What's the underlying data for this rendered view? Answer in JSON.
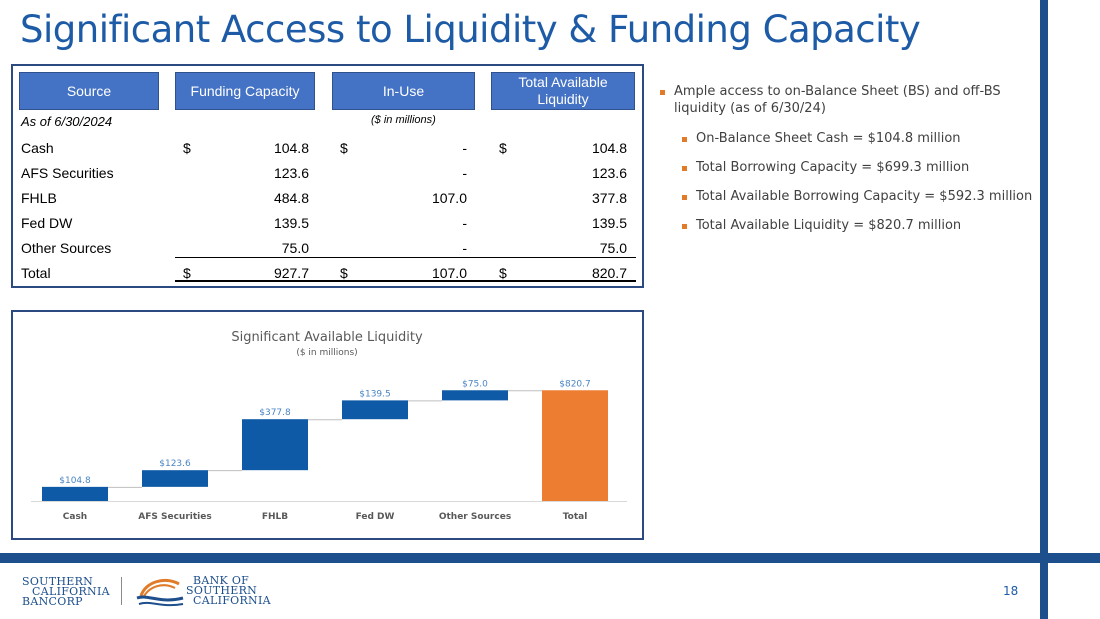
{
  "title": "Significant Access to Liquidity & Funding Capacity",
  "table": {
    "headers": [
      "Source",
      "Funding Capacity",
      "In-Use",
      "Total Available Liquidity"
    ],
    "as_of": "As of 6/30/2024",
    "units": "($ in millions)",
    "rows": [
      {
        "label": "Cash",
        "funding_dollar": "$",
        "funding": "104.8",
        "inuse_dollar": "$",
        "inuse": "-",
        "avail_dollar": "$",
        "avail": "104.8"
      },
      {
        "label": "AFS Securities",
        "funding_dollar": "",
        "funding": "123.6",
        "inuse_dollar": "",
        "inuse": "-",
        "avail_dollar": "",
        "avail": "123.6"
      },
      {
        "label": "FHLB",
        "funding_dollar": "",
        "funding": "484.8",
        "inuse_dollar": "",
        "inuse": "107.0",
        "avail_dollar": "",
        "avail": "377.8"
      },
      {
        "label": "Fed DW",
        "funding_dollar": "",
        "funding": "139.5",
        "inuse_dollar": "",
        "inuse": "-",
        "avail_dollar": "",
        "avail": "139.5"
      },
      {
        "label": "Other Sources",
        "funding_dollar": "",
        "funding": "75.0",
        "inuse_dollar": "",
        "inuse": "-",
        "avail_dollar": "",
        "avail": "75.0"
      },
      {
        "label": "Total",
        "funding_dollar": "$",
        "funding": "927.7",
        "inuse_dollar": "$",
        "inuse": "107.0",
        "avail_dollar": "$",
        "avail": "820.7"
      }
    ]
  },
  "bullets": [
    {
      "level": 1,
      "lines": [
        "Ample access to on-Balance Sheet (BS) and off-BS",
        "liquidity (as of 6/30/24)"
      ]
    },
    {
      "level": 2,
      "lines": [
        "On-Balance Sheet Cash = $104.8 million"
      ]
    },
    {
      "level": 2,
      "lines": [
        "Total Borrowing Capacity = $699.3 million"
      ]
    },
    {
      "level": 2,
      "lines": [
        "Total Available Borrowing Capacity = $592.3 million"
      ]
    },
    {
      "level": 2,
      "lines": [
        "Total Available Liquidity = $820.7 million"
      ]
    }
  ],
  "chart_data": {
    "type": "bar",
    "subtype": "waterfall",
    "title": "Significant Available Liquidity",
    "subtitle": "($ in millions)",
    "categories": [
      "Cash",
      "AFS Securities",
      "FHLB",
      "Fed DW",
      "Other Sources",
      "Total"
    ],
    "values": [
      104.8,
      123.6,
      377.8,
      139.5,
      75.0,
      820.7
    ],
    "data_labels": [
      "$104.8",
      "$123.6",
      "$377.8",
      "$139.5",
      "$75.0",
      "$820.7"
    ],
    "ylim": [
      0,
      830
    ],
    "grid": false,
    "colors": {
      "increase": "#0f5aa6",
      "total": "#ed7d31",
      "label": "#4a86c5"
    }
  },
  "footer": {
    "left_logo_lines": [
      "SOUTHERN",
      "CALIFORNIA",
      "BANCORP"
    ],
    "right_logo_lines": [
      "BANK OF",
      "SOUTHERN",
      "CALIFORNIA"
    ],
    "page_number": "18"
  },
  "colors": {
    "brand_blue": "#1d4f8c",
    "title_blue": "#1d5ba6",
    "header_blue": "#4472c4",
    "accent_orange": "#e07b2a"
  }
}
